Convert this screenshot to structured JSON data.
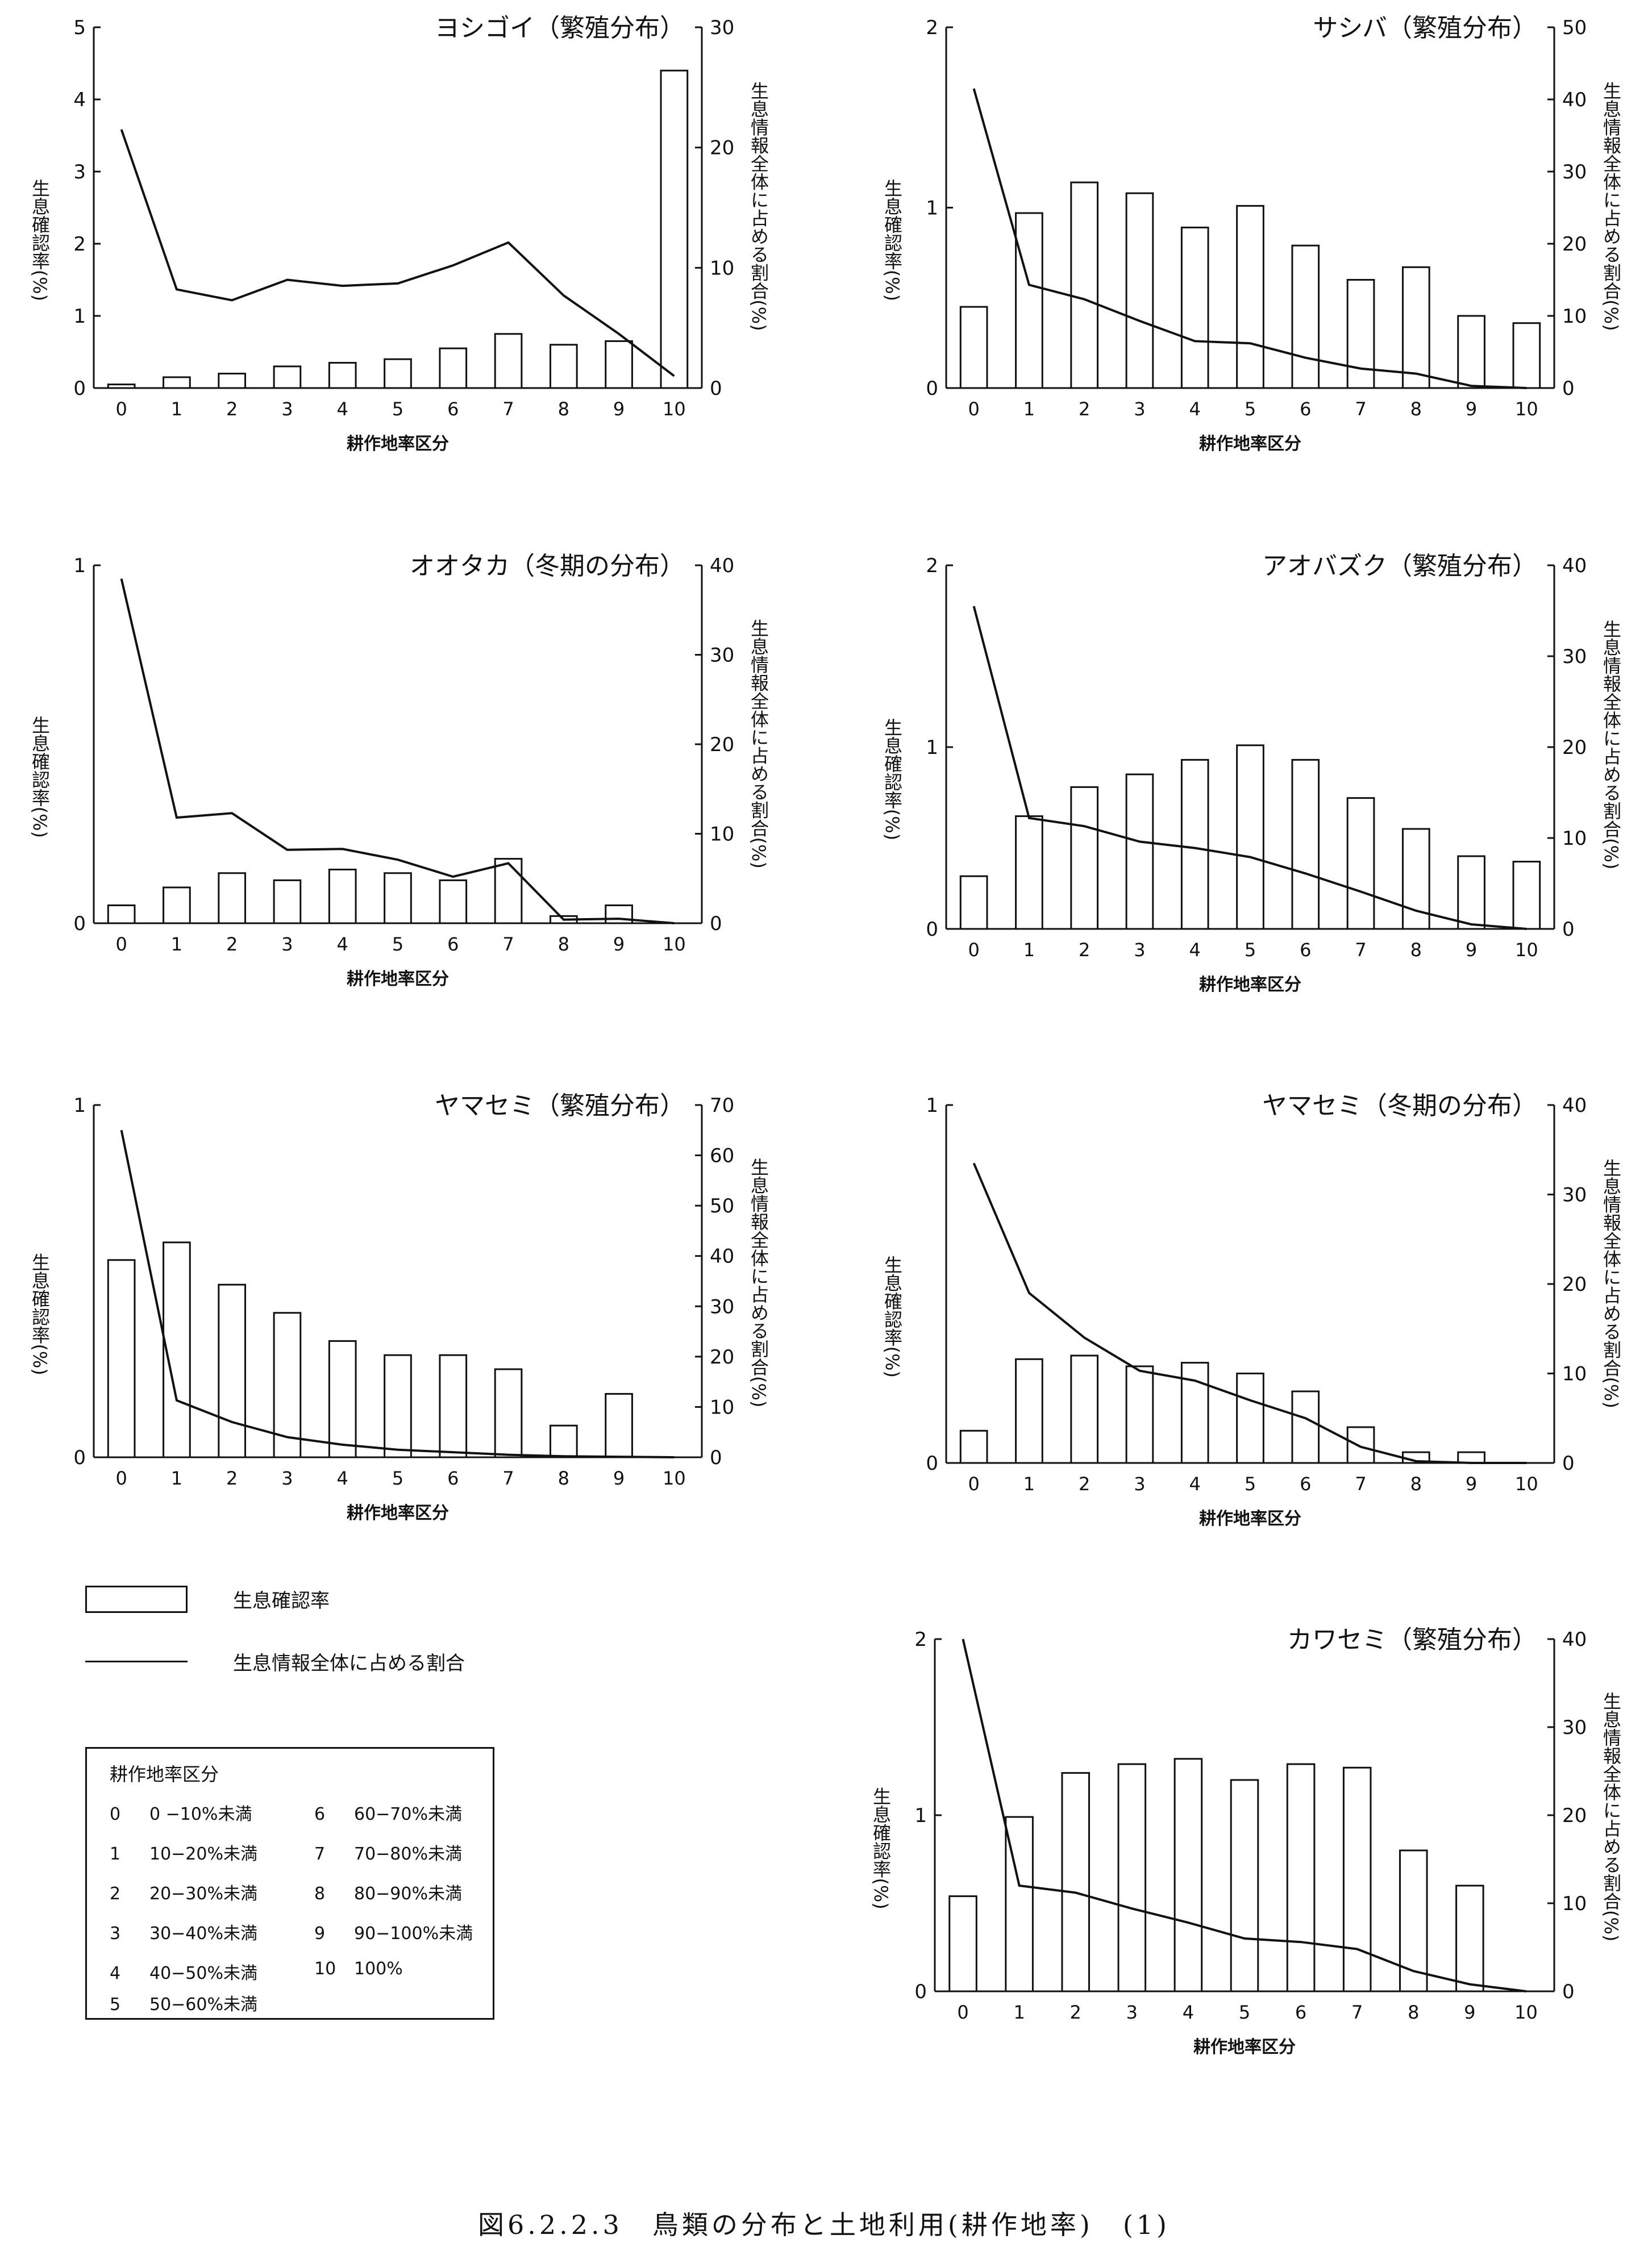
{
  "figure_caption": "図6.2.2.3　鳥類の分布と土地利用(耕作地率)　(1)",
  "legend": {
    "bar_label": "生息確認率",
    "line_label": "生息情報全体に占める割合"
  },
  "classification": {
    "title": "耕作地率区分",
    "items": [
      {
        "code": "0",
        "label": "0 −10%未満"
      },
      {
        "code": "1",
        "label": "10−20%未満"
      },
      {
        "code": "2",
        "label": "20−30%未満"
      },
      {
        "code": "3",
        "label": "30−40%未満"
      },
      {
        "code": "4",
        "label": "40−50%未満"
      },
      {
        "code": "5",
        "label": "50−60%未満"
      },
      {
        "code": "6",
        "label": "60−70%未満"
      },
      {
        "code": "7",
        "label": "70−80%未満"
      },
      {
        "code": "8",
        "label": "80−90%未満"
      },
      {
        "code": "9",
        "label": "90−100%未満"
      },
      {
        "code": "10",
        "label": "100%"
      }
    ]
  },
  "chart_data": [
    {
      "type": "bar",
      "title": "ヨシゴイ（繁殖分布）",
      "xlabel": "耕作地率区分",
      "ylabel": "生息確認率(%)",
      "y2label": "生息情報全体に占める割合(%)",
      "categories": [
        "0",
        "1",
        "2",
        "3",
        "4",
        "5",
        "6",
        "7",
        "8",
        "9",
        "10"
      ],
      "ylim": [
        0,
        5
      ],
      "yticks": [
        "0",
        "1",
        "2",
        "3",
        "4",
        "5"
      ],
      "y2lim": [
        0,
        30
      ],
      "y2ticks": [
        "0",
        "10",
        "20",
        "30"
      ],
      "series": [
        {
          "values": [
            0.05,
            0.15,
            0.2,
            0.3,
            0.35,
            0.4,
            0.55,
            0.75,
            0.6,
            0.65,
            4.4
          ]
        },
        {
          "values": [
            21.5,
            8.2,
            7.3,
            9,
            8.5,
            8.7,
            10.2,
            12.1,
            7.7,
            4.5,
            1
          ]
        }
      ]
    },
    {
      "type": "bar",
      "title": "サシバ（繁殖分布）",
      "xlabel": "耕作地率区分",
      "ylabel": "生息確認率(%)",
      "y2label": "生息情報全体に占める割合(%)",
      "categories": [
        "0",
        "1",
        "2",
        "3",
        "4",
        "5",
        "6",
        "7",
        "8",
        "9",
        "10"
      ],
      "ylim": [
        0,
        2
      ],
      "yticks": [
        "0",
        "1",
        "2"
      ],
      "y2lim": [
        0,
        50
      ],
      "y2ticks": [
        "0",
        "10",
        "20",
        "30",
        "40",
        "50"
      ],
      "series": [
        {
          "values": [
            0.45,
            0.97,
            1.14,
            1.08,
            0.89,
            1.01,
            0.79,
            0.6,
            0.67,
            0.4,
            0.36
          ]
        },
        {
          "values": [
            41.5,
            14.3,
            12.3,
            9.3,
            6.5,
            6.2,
            4.2,
            2.7,
            2,
            0.3,
            0
          ]
        }
      ]
    },
    {
      "type": "bar",
      "title": "オオタカ（冬期の分布）",
      "xlabel": "耕作地率区分",
      "ylabel": "生息確認率(%)",
      "y2label": "生息情報全体に占める割合(%)",
      "categories": [
        "0",
        "1",
        "2",
        "3",
        "4",
        "5",
        "6",
        "7",
        "8",
        "9",
        "10"
      ],
      "ylim": [
        0,
        1
      ],
      "yticks": [
        "0",
        "1"
      ],
      "y2lim": [
        0,
        40
      ],
      "y2ticks": [
        "0",
        "10",
        "20",
        "30",
        "40"
      ],
      "series": [
        {
          "values": [
            0.05,
            0.1,
            0.14,
            0.12,
            0.15,
            0.14,
            0.12,
            0.18,
            0.02,
            0.05,
            0
          ]
        },
        {
          "values": [
            38.5,
            11.8,
            12.3,
            8.2,
            8.3,
            7.1,
            5.2,
            6.7,
            0.4,
            0.5,
            0
          ]
        }
      ]
    },
    {
      "type": "bar",
      "title": "アオバズク（繁殖分布）",
      "xlabel": "耕作地率区分",
      "ylabel": "生息確認率(%)",
      "y2label": "生息情報全体に占める割合(%)",
      "categories": [
        "0",
        "1",
        "2",
        "3",
        "4",
        "5",
        "6",
        "7",
        "8",
        "9",
        "10"
      ],
      "ylim": [
        0,
        2
      ],
      "yticks": [
        "0",
        "1",
        "2"
      ],
      "y2lim": [
        0,
        40
      ],
      "y2ticks": [
        "0",
        "10",
        "20",
        "30",
        "40"
      ],
      "series": [
        {
          "values": [
            0.29,
            0.62,
            0.78,
            0.85,
            0.93,
            1.01,
            0.93,
            0.72,
            0.55,
            0.4,
            0.37
          ]
        },
        {
          "values": [
            35.5,
            12.2,
            11.3,
            9.6,
            8.9,
            7.9,
            6.1,
            4.1,
            2,
            0.5,
            0
          ]
        }
      ]
    },
    {
      "type": "bar",
      "title": "ヤマセミ（繁殖分布）",
      "xlabel": "耕作地率区分",
      "ylabel": "生息確認率(%)",
      "y2label": "生息情報全体に占める割合(%)",
      "categories": [
        "0",
        "1",
        "2",
        "3",
        "4",
        "5",
        "6",
        "7",
        "8",
        "9",
        "10"
      ],
      "ylim": [
        0,
        1
      ],
      "yticks": [
        "0",
        "1"
      ],
      "y2lim": [
        0,
        70
      ],
      "y2ticks": [
        "0",
        "10",
        "20",
        "30",
        "40",
        "50",
        "60",
        "70"
      ],
      "series": [
        {
          "values": [
            0.56,
            0.61,
            0.49,
            0.41,
            0.33,
            0.29,
            0.29,
            0.25,
            0.09,
            0.18,
            0
          ]
        },
        {
          "values": [
            65,
            11.3,
            7,
            4,
            2.5,
            1.5,
            1,
            0.5,
            0.2,
            0.1,
            0
          ]
        }
      ]
    },
    {
      "type": "bar",
      "title": "ヤマセミ（冬期の分布）",
      "xlabel": "耕作地率区分",
      "ylabel": "生息確認率(%)",
      "y2label": "生息情報全体に占める割合(%)",
      "categories": [
        "0",
        "1",
        "2",
        "3",
        "4",
        "5",
        "6",
        "7",
        "8",
        "9",
        "10"
      ],
      "ylim": [
        0,
        1
      ],
      "yticks": [
        "0",
        "1"
      ],
      "y2lim": [
        0,
        40
      ],
      "y2ticks": [
        "0",
        "10",
        "20",
        "30",
        "40"
      ],
      "series": [
        {
          "values": [
            0.09,
            0.29,
            0.3,
            0.27,
            0.28,
            0.25,
            0.2,
            0.1,
            0.03,
            0.03,
            0
          ]
        },
        {
          "values": [
            33.5,
            19,
            14,
            10.3,
            9.2,
            7,
            5,
            1.8,
            0.2,
            0,
            0
          ]
        }
      ]
    },
    {
      "type": "bar",
      "title": "カワセミ（繁殖分布）",
      "xlabel": "耕作地率区分",
      "ylabel": "生息確認率(%)",
      "y2label": "生息情報全体に占める割合(%)",
      "categories": [
        "0",
        "1",
        "2",
        "3",
        "4",
        "5",
        "6",
        "7",
        "8",
        "9",
        "10"
      ],
      "ylim": [
        0,
        2
      ],
      "yticks": [
        "0",
        "1",
        "2"
      ],
      "y2lim": [
        0,
        40
      ],
      "y2ticks": [
        "0",
        "10",
        "20",
        "30",
        "40"
      ],
      "series": [
        {
          "values": [
            0.54,
            0.99,
            1.24,
            1.29,
            1.32,
            1.2,
            1.29,
            1.27,
            0.8,
            0.6,
            0
          ]
        },
        {
          "values": [
            40,
            12,
            11.2,
            9.4,
            7.8,
            6,
            5.6,
            4.8,
            2.3,
            0.8,
            0
          ]
        }
      ]
    }
  ]
}
